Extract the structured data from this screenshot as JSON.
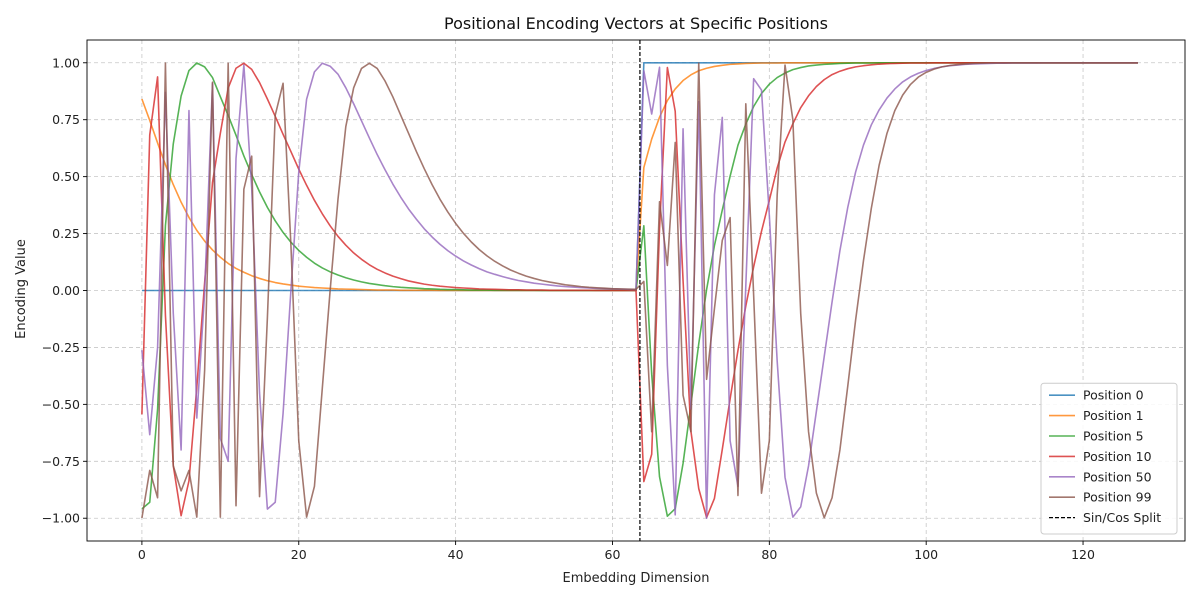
{
  "chart_data": {
    "type": "line",
    "title": "Positional Encoding Vectors at Specific Positions",
    "xlabel": "Embedding Dimension",
    "ylabel": "Encoding Value",
    "xlim": [
      -7,
      133
    ],
    "ylim": [
      -1.1,
      1.1
    ],
    "x_ticks": [
      0,
      20,
      40,
      60,
      80,
      100,
      120
    ],
    "x_tick_labels": [
      "0",
      "20",
      "40",
      "60",
      "80",
      "100",
      "120"
    ],
    "y_ticks": [
      -1.0,
      -0.75,
      -0.5,
      -0.25,
      0.0,
      0.25,
      0.5,
      0.75,
      1.0
    ],
    "y_tick_labels": [
      "−1.00",
      "−0.75",
      "−0.50",
      "−0.25",
      "0.00",
      "0.25",
      "0.50",
      "0.75",
      "1.00"
    ],
    "grid": true,
    "legend_position": "lower-right",
    "x": [
      0,
      1,
      2,
      3,
      4,
      5,
      6,
      7,
      8,
      9,
      10,
      11,
      12,
      13,
      14,
      15,
      16,
      17,
      18,
      19,
      20,
      21,
      22,
      23,
      24,
      25,
      26,
      27,
      28,
      29,
      30,
      31,
      32,
      33,
      34,
      35,
      36,
      37,
      38,
      39,
      40,
      41,
      42,
      43,
      44,
      45,
      46,
      47,
      48,
      49,
      50,
      51,
      52,
      53,
      54,
      55,
      56,
      57,
      58,
      59,
      60,
      61,
      62,
      63,
      64,
      65,
      66,
      67,
      68,
      69,
      70,
      71,
      72,
      73,
      74,
      75,
      76,
      77,
      78,
      79,
      80,
      81,
      82,
      83,
      84,
      85,
      86,
      87,
      88,
      89,
      90,
      91,
      92,
      93,
      94,
      95,
      96,
      97,
      98,
      99,
      100,
      101,
      102,
      103,
      104,
      105,
      106,
      107,
      108,
      109,
      110,
      111,
      112,
      113,
      114,
      115,
      116,
      117,
      118,
      119,
      120,
      121,
      122,
      123,
      124,
      125,
      126,
      127
    ],
    "series": [
      {
        "name": "Position 0",
        "color": "#1f77b4",
        "values": [
          0,
          0,
          0,
          0,
          0,
          0,
          0,
          0,
          0,
          0,
          0,
          0,
          0,
          0,
          0,
          0,
          0,
          0,
          0,
          0,
          0,
          0,
          0,
          0,
          0,
          0,
          0,
          0,
          0,
          0,
          0,
          0,
          0,
          0,
          0,
          0,
          0,
          0,
          0,
          0,
          0,
          0,
          0,
          0,
          0,
          0,
          0,
          0,
          0,
          0,
          0,
          0,
          0,
          0,
          0,
          0,
          0,
          0,
          0,
          0,
          0,
          0,
          0,
          0,
          1,
          1,
          1,
          1,
          1,
          1,
          1,
          1,
          1,
          1,
          1,
          1,
          1,
          1,
          1,
          1,
          1,
          1,
          1,
          1,
          1,
          1,
          1,
          1,
          1,
          1,
          1,
          1,
          1,
          1,
          1,
          1,
          1,
          1,
          1,
          1,
          1,
          1,
          1,
          1,
          1,
          1,
          1,
          1,
          1,
          1,
          1,
          1,
          1,
          1,
          1,
          1,
          1,
          1,
          1,
          1,
          1,
          1,
          1,
          1,
          1,
          1,
          1,
          1
        ]
      },
      {
        "name": "Position 1",
        "color": "#ff7f0e",
        "values": [
          0.841,
          0.747,
          0.648,
          0.552,
          0.465,
          0.388,
          0.321,
          0.264,
          0.217,
          0.178,
          0.146,
          0.119,
          0.097,
          0.08,
          0.065,
          0.053,
          0.043,
          0.035,
          0.029,
          0.024,
          0.019,
          0.016,
          0.013,
          0.011,
          0.009,
          0.007,
          0.006,
          0.005,
          0.004,
          0.003,
          0.002,
          0.002,
          0.002,
          0.001,
          0.001,
          0.001,
          0.001,
          0.001,
          0.0,
          0.0,
          0.0,
          0.0,
          0.0,
          0.0,
          0.0,
          0.0,
          0.0,
          0.0,
          0.0,
          0.0,
          0.0,
          0.0,
          0.0,
          0.0,
          0.0,
          0.0,
          0.0,
          0.0,
          0.0,
          0.0,
          0.0,
          0.0,
          0.0,
          0.0,
          0.54,
          0.665,
          0.761,
          0.834,
          0.885,
          0.922,
          0.947,
          0.965,
          0.976,
          0.984,
          0.989,
          0.993,
          0.995,
          0.997,
          0.998,
          0.999,
          0.999,
          0.999,
          1.0,
          1.0,
          1.0,
          1.0,
          1.0,
          1.0,
          1.0,
          1.0,
          1.0,
          1.0,
          1.0,
          1.0,
          1.0,
          1.0,
          1.0,
          1.0,
          1.0,
          1.0,
          1.0,
          1.0,
          1.0,
          1.0,
          1.0,
          1.0,
          1.0,
          1.0,
          1.0,
          1.0,
          1.0,
          1.0,
          1.0,
          1.0,
          1.0,
          1.0,
          1.0,
          1.0,
          1.0,
          1.0,
          1.0,
          1.0,
          1.0,
          1.0,
          1.0,
          1.0,
          1.0,
          1.0
        ]
      },
      {
        "name": "Position 5",
        "color": "#2ca02c",
        "values": [
          -0.959,
          -0.93,
          -0.522,
          0.285,
          0.644,
          0.854,
          0.966,
          0.999,
          0.982,
          0.935,
          0.851,
          0.769,
          0.682,
          0.591,
          0.509,
          0.433,
          0.365,
          0.306,
          0.255,
          0.212,
          0.176,
          0.146,
          0.12,
          0.099,
          0.082,
          0.068,
          0.056,
          0.046,
          0.038,
          0.031,
          0.026,
          0.021,
          0.017,
          0.014,
          0.012,
          0.01,
          0.008,
          0.007,
          0.005,
          0.004,
          0.004,
          0.003,
          0.002,
          0.002,
          0.002,
          0.001,
          0.001,
          0.001,
          0.001,
          0.001,
          0.001,
          0.0,
          0.0,
          0.0,
          0.0,
          0.0,
          0.0,
          0.0,
          0.0,
          0.0,
          0.0,
          0.0,
          0.0,
          0.0,
          0.284,
          -0.367,
          -0.818,
          -0.991,
          -0.958,
          -0.759,
          -0.502,
          -0.234,
          0.004,
          0.197,
          0.353,
          0.502,
          0.638,
          0.731,
          0.808,
          0.865,
          0.906,
          0.935,
          0.955,
          0.97,
          0.979,
          0.986,
          0.99,
          0.993,
          0.995,
          0.997,
          0.998,
          0.999,
          0.999,
          0.999,
          1.0,
          1.0,
          1.0,
          1.0,
          1.0,
          1.0,
          1.0,
          1.0,
          1.0,
          1.0,
          1.0,
          1.0,
          1.0,
          1.0,
          1.0,
          1.0,
          1.0,
          1.0,
          1.0,
          1.0,
          1.0,
          1.0,
          1.0,
          1.0,
          1.0,
          1.0,
          1.0,
          1.0,
          1.0,
          1.0,
          1.0,
          1.0,
          1.0,
          1.0
        ]
      },
      {
        "name": "Position 10",
        "color": "#d62728",
        "values": [
          -0.544,
          0.683,
          0.938,
          -0.109,
          -0.769,
          -0.989,
          -0.836,
          -0.425,
          0.035,
          0.474,
          0.69,
          0.889,
          0.976,
          0.998,
          0.971,
          0.913,
          0.841,
          0.765,
          0.686,
          0.61,
          0.533,
          0.462,
          0.396,
          0.337,
          0.284,
          0.238,
          0.199,
          0.165,
          0.137,
          0.113,
          0.093,
          0.077,
          0.063,
          0.052,
          0.042,
          0.035,
          0.028,
          0.023,
          0.019,
          0.016,
          0.013,
          0.011,
          0.009,
          0.007,
          0.006,
          0.005,
          0.004,
          0.003,
          0.003,
          0.002,
          0.002,
          0.002,
          0.001,
          0.001,
          0.001,
          0.001,
          0.001,
          0.001,
          0.0,
          0.0,
          0.0,
          0.0,
          0.0,
          0.0,
          -0.839,
          -0.719,
          0.272,
          0.979,
          0.787,
          0.044,
          -0.617,
          -0.87,
          -0.997,
          -0.913,
          -0.698,
          -0.476,
          -0.263,
          -0.068,
          0.104,
          0.26,
          0.396,
          0.538,
          0.652,
          0.732,
          0.803,
          0.855,
          0.896,
          0.926,
          0.948,
          0.963,
          0.974,
          0.982,
          0.987,
          0.991,
          0.994,
          0.996,
          0.997,
          0.998,
          0.999,
          0.999,
          0.999,
          1.0,
          1.0,
          1.0,
          1.0,
          1.0,
          1.0,
          1.0,
          1.0,
          1.0,
          1.0,
          1.0,
          1.0,
          1.0,
          1.0,
          1.0,
          1.0,
          1.0,
          1.0,
          1.0,
          1.0,
          1.0,
          1.0,
          1.0,
          1.0,
          1.0,
          1.0,
          1.0
        ]
      },
      {
        "name": "Position 50",
        "color": "#9467bd",
        "values": [
          -0.262,
          -0.633,
          -0.25,
          0.87,
          -0.1,
          -0.7,
          0.79,
          -0.56,
          -0.01,
          0.91,
          -0.65,
          -0.75,
          0.58,
          0.99,
          0.45,
          -0.45,
          -0.96,
          -0.93,
          -0.54,
          0.0,
          0.52,
          0.84,
          0.96,
          0.998,
          0.985,
          0.95,
          0.89,
          0.82,
          0.745,
          0.67,
          0.597,
          0.53,
          0.467,
          0.41,
          0.358,
          0.313,
          0.271,
          0.235,
          0.203,
          0.175,
          0.151,
          0.13,
          0.112,
          0.096,
          0.082,
          0.071,
          0.061,
          0.052,
          0.044,
          0.038,
          0.032,
          0.028,
          0.024,
          0.02,
          0.017,
          0.015,
          0.013,
          0.011,
          0.009,
          0.008,
          0.007,
          0.006,
          0.005,
          0.004,
          0.965,
          0.775,
          0.98,
          -0.33,
          -0.985,
          0.71,
          -0.52,
          0.83,
          -1.0,
          0.42,
          0.76,
          -0.66,
          -0.86,
          0.02,
          0.93,
          0.88,
          0.33,
          -0.31,
          -0.82,
          -0.995,
          -0.95,
          -0.77,
          -0.53,
          -0.29,
          -0.05,
          0.175,
          0.365,
          0.52,
          0.638,
          0.727,
          0.793,
          0.845,
          0.885,
          0.916,
          0.938,
          0.954,
          0.966,
          0.975,
          0.982,
          0.987,
          0.99,
          0.993,
          0.995,
          0.996,
          0.997,
          0.998,
          0.998,
          0.999,
          0.999,
          0.999,
          0.999,
          1.0,
          1.0,
          1.0,
          1.0,
          1.0,
          1.0,
          1.0,
          1.0,
          1.0,
          1.0,
          1.0,
          1.0,
          1.0
        ]
      },
      {
        "name": "Position 99",
        "color": "#8c564b",
        "values": [
          -0.999,
          -0.79,
          -0.91,
          0.999,
          -0.77,
          -0.88,
          -0.79,
          -0.995,
          -0.35,
          0.915,
          -0.995,
          0.998,
          -0.945,
          0.445,
          0.59,
          -0.905,
          -0.12,
          0.77,
          0.91,
          0.2,
          -0.66,
          -0.995,
          -0.86,
          -0.43,
          0.0,
          0.4,
          0.72,
          0.89,
          0.975,
          0.998,
          0.975,
          0.92,
          0.85,
          0.77,
          0.69,
          0.61,
          0.535,
          0.465,
          0.401,
          0.345,
          0.295,
          0.251,
          0.213,
          0.18,
          0.152,
          0.128,
          0.108,
          0.09,
          0.076,
          0.063,
          0.053,
          0.044,
          0.037,
          0.031,
          0.025,
          0.021,
          0.017,
          0.014,
          0.012,
          0.01,
          0.008,
          0.007,
          0.006,
          0.005,
          0.04,
          -0.62,
          0.39,
          0.11,
          0.65,
          -0.46,
          -0.62,
          0.998,
          -0.39,
          -0.08,
          0.22,
          0.32,
          -0.9,
          0.82,
          -0.02,
          -0.89,
          -0.66,
          0.42,
          0.99,
          0.75,
          -0.1,
          -0.62,
          -0.89,
          -0.998,
          -0.91,
          -0.7,
          -0.42,
          -0.13,
          0.13,
          0.36,
          0.55,
          0.69,
          0.79,
          0.858,
          0.905,
          0.937,
          0.958,
          0.972,
          0.982,
          0.988,
          0.992,
          0.995,
          0.997,
          0.998,
          0.999,
          0.999,
          0.999,
          1.0,
          1.0,
          1.0,
          1.0,
          1.0,
          1.0,
          1.0,
          1.0,
          1.0,
          1.0,
          1.0,
          1.0,
          1.0,
          1.0,
          1.0,
          1.0,
          1.0
        ]
      }
    ],
    "split_line": {
      "name": "Sin/Cos Split",
      "x": 63.5,
      "color": "#000000",
      "style": "dashed"
    }
  }
}
